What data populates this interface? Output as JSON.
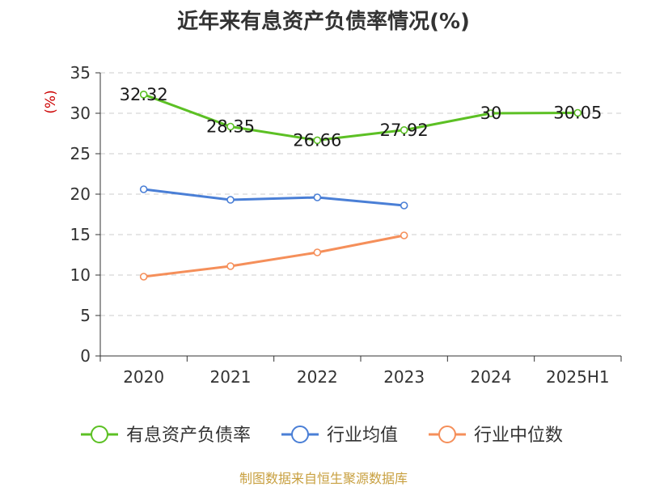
{
  "chart_data": {
    "type": "line",
    "title": "近年来有息资产负债率情况(%)",
    "unit_label": "(%)",
    "categories": [
      "2020",
      "2021",
      "2022",
      "2023",
      "2024",
      "2025H1"
    ],
    "ylim": [
      0,
      35
    ],
    "yticks": [
      0,
      5,
      10,
      15,
      20,
      25,
      30,
      35
    ],
    "grid": true,
    "legend_position": "bottom",
    "series": [
      {
        "name": "有息资产负债率",
        "color": "#5cc024",
        "values": [
          32.32,
          28.35,
          26.66,
          27.92,
          30,
          30.05
        ],
        "labels": [
          "32.32",
          "28.35",
          "26.66",
          "27.92",
          "30",
          "30.05"
        ]
      },
      {
        "name": "行业均值",
        "color": "#4a7fd6",
        "values": [
          20.6,
          19.3,
          19.6,
          18.6,
          null,
          null
        ]
      },
      {
        "name": "行业中位数",
        "color": "#f58f5a",
        "values": [
          9.8,
          11.1,
          12.8,
          14.9,
          null,
          null
        ]
      }
    ]
  },
  "source_note": "制图数据来自恒生聚源数据库"
}
